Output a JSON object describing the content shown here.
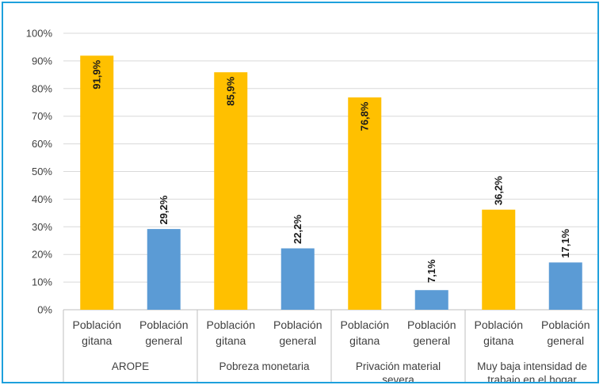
{
  "chart_data": {
    "type": "bar",
    "title": "",
    "xlabel": "",
    "ylabel": "",
    "ylim": [
      0,
      100
    ],
    "y_ticks": [
      "0%",
      "10%",
      "20%",
      "30%",
      "40%",
      "50%",
      "60%",
      "70%",
      "80%",
      "90%",
      "100%"
    ],
    "grid": true,
    "legend": "none",
    "groups": [
      {
        "label": "AROPE",
        "bars": [
          {
            "category_line1": "Población",
            "category_line2": "gitana",
            "value": 91.9,
            "label": "91,9%",
            "color": "#ffc000"
          },
          {
            "category_line1": "Población",
            "category_line2": "general",
            "value": 29.2,
            "label": "29,2%",
            "color": "#5b9bd5"
          }
        ]
      },
      {
        "label": "Pobreza monetaria",
        "bars": [
          {
            "category_line1": "Población",
            "category_line2": "gitana",
            "value": 85.9,
            "label": "85,9%",
            "color": "#ffc000"
          },
          {
            "category_line1": "Población",
            "category_line2": "general",
            "value": 22.2,
            "label": "22,2%",
            "color": "#5b9bd5"
          }
        ]
      },
      {
        "label": "Privación material severa",
        "bars": [
          {
            "category_line1": "Población",
            "category_line2": "gitana",
            "value": 76.8,
            "label": "76,8%",
            "color": "#ffc000"
          },
          {
            "category_line1": "Población",
            "category_line2": "general",
            "value": 7.1,
            "label": "7,1%",
            "color": "#5b9bd5"
          }
        ]
      },
      {
        "label": "Muy baja intensidad de trabajo en el hogar",
        "bars": [
          {
            "category_line1": "Población",
            "category_line2": "gitana",
            "value": 36.2,
            "label": "36,2%",
            "color": "#ffc000"
          },
          {
            "category_line1": "Población",
            "category_line2": "general",
            "value": 17.1,
            "label": "17,1%",
            "color": "#5b9bd5"
          }
        ]
      }
    ]
  }
}
